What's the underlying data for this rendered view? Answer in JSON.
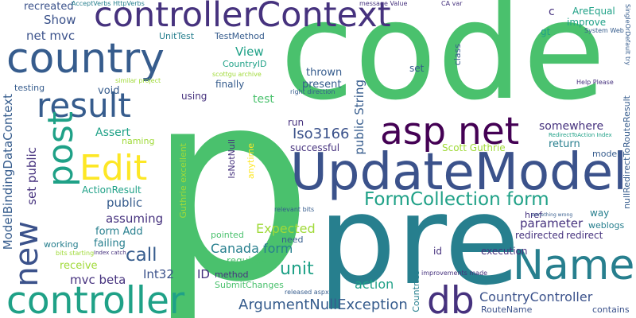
{
  "words": {
    "code": "code",
    "p": "p",
    "pre": "pre",
    "updatemodel": "UpdateModel",
    "controllercontext": "controllerContext",
    "country": "country",
    "controller": "controller",
    "asp_net": "asp net",
    "name": "Name",
    "result": "result",
    "db": "db",
    "post": "post",
    "edit": "Edit",
    "new": "new",
    "formcollection_form": "FormCollection form",
    "countrycontroller": "CountryController",
    "argumentnullexception": "ArgumentNullException",
    "modelbindingdatacontext": "ModelBindingDataContext",
    "iso3166": "Iso3166",
    "expected": "Expected",
    "canada_form": "Canada form",
    "unit": "unit",
    "call": "call",
    "action": "action",
    "parameter": "parameter",
    "public_string": "public String",
    "set_public": "set public",
    "mvc_beta": "mvc beta",
    "int32": "Int32",
    "id": "ID",
    "net_mvc": "net mvc",
    "show": "Show",
    "recreated": "recreated",
    "view": "View",
    "countryid": "CountryID",
    "thrown": "thrown",
    "set": "set",
    "class": "class",
    "present": "present",
    "finally": "finally",
    "test": "test",
    "testing": "testing",
    "void": "void",
    "using": "using",
    "assert": "Assert",
    "naming": "naming",
    "actionresult": "ActionResult",
    "public": "public",
    "assuming": "assuming",
    "form_add": "form Add",
    "failing": "failing",
    "working": "working",
    "receive": "receive",
    "isnotnull": "IsNotNull",
    "guthrie_excellent": "Guthrie excellent",
    "anytime": "anytime",
    "run": "run",
    "successful": "successful",
    "scott_guthrie": "Scott Guthrie",
    "somewhere": "somewhere",
    "return": "return",
    "model": "model",
    "redirecttoroute": "nullRedirectToRouteResult",
    "areequal": "AreEqual",
    "improve": "improve",
    "gt": "gt",
    "c": "c",
    "unittest": "UnitTest",
    "testmethod": "TestMethod",
    "acceptverbs": "AcceptVerbs HttpVerbs",
    "message_value": "message Value",
    "ca_var": "CA var",
    "system_web": "System Web",
    "singleordefault": "SingleOrDefault try",
    "redirectaction": "RedirectToAction Index",
    "help_please": "Help Please",
    "scottgu_archive": "scottgu archive",
    "similar_project": "similar project",
    "right_direction": "right direction",
    "relevant_bits": "relevant bits",
    "href": "href",
    "something_wrong": "something wrong",
    "way": "way",
    "weblogs": "weblogs",
    "redirected": "redirected",
    "redirect": "redirect",
    "execution": "execution",
    "need": "need",
    "requires": "requires",
    "pointed": "pointed",
    "method": "method",
    "submitchanges": "SubmitChanges",
    "released_aspx": "released aspx",
    "improvements_made": "improvements made",
    "countries": "Countries",
    "routename": "RouteName",
    "contains": "contains",
    "bits_starting": "bits starting",
    "index_catch": "Index catch",
    "id_lower": "id"
  }
}
